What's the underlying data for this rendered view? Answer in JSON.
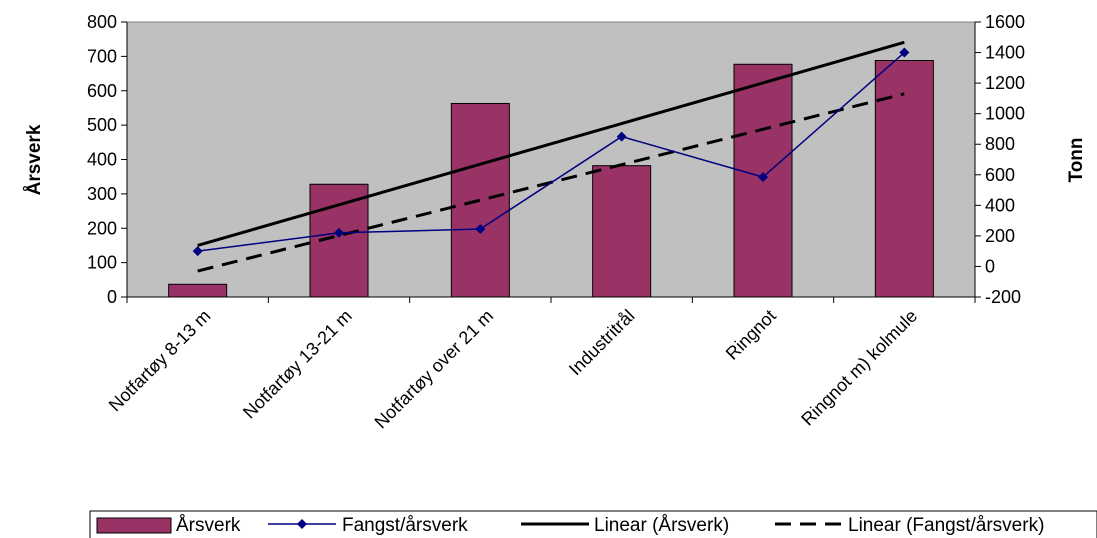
{
  "chart_data": {
    "type": "bar",
    "categories": [
      "Notfartøy 8-13 m",
      "Notfartøy 13-21 m",
      "Notfartøy over 21 m",
      "Industritrål",
      "Ringnot",
      "Ringnot m) kolmule"
    ],
    "series": [
      {
        "name": "Årsverk",
        "type": "bar",
        "axis": "left",
        "values": [
          37,
          328,
          563,
          382,
          677,
          688
        ],
        "color": "#993366"
      },
      {
        "name": "Fangst/årsverk",
        "type": "line",
        "axis": "right",
        "marker": "diamond",
        "values": [
          100,
          220,
          245,
          850,
          585,
          1400
        ],
        "color": "#000080"
      },
      {
        "name": "Linear (Årsverk)",
        "type": "trendline",
        "axis": "left",
        "style": "solid",
        "start": 150,
        "end": 741,
        "color": "#000000"
      },
      {
        "name": "Linear (Fangst/årsverk)",
        "type": "trendline",
        "axis": "right",
        "style": "dashed",
        "start": -30,
        "end": 1130,
        "color": "#000000"
      }
    ],
    "left_axis": {
      "label": "Årsverk",
      "min": 0,
      "max": 800,
      "ticks": [
        "0",
        "100",
        "200",
        "300",
        "400",
        "500",
        "600",
        "700",
        "800"
      ]
    },
    "right_axis": {
      "label": "Tonn",
      "min": -200,
      "max": 1600,
      "ticks": [
        "-200",
        "0",
        "200",
        "400",
        "600",
        "800",
        "1000",
        "1200",
        "1400",
        "1600"
      ]
    },
    "plot_background": "#c0c0c0",
    "grid": false,
    "legend_position": "bottom"
  }
}
